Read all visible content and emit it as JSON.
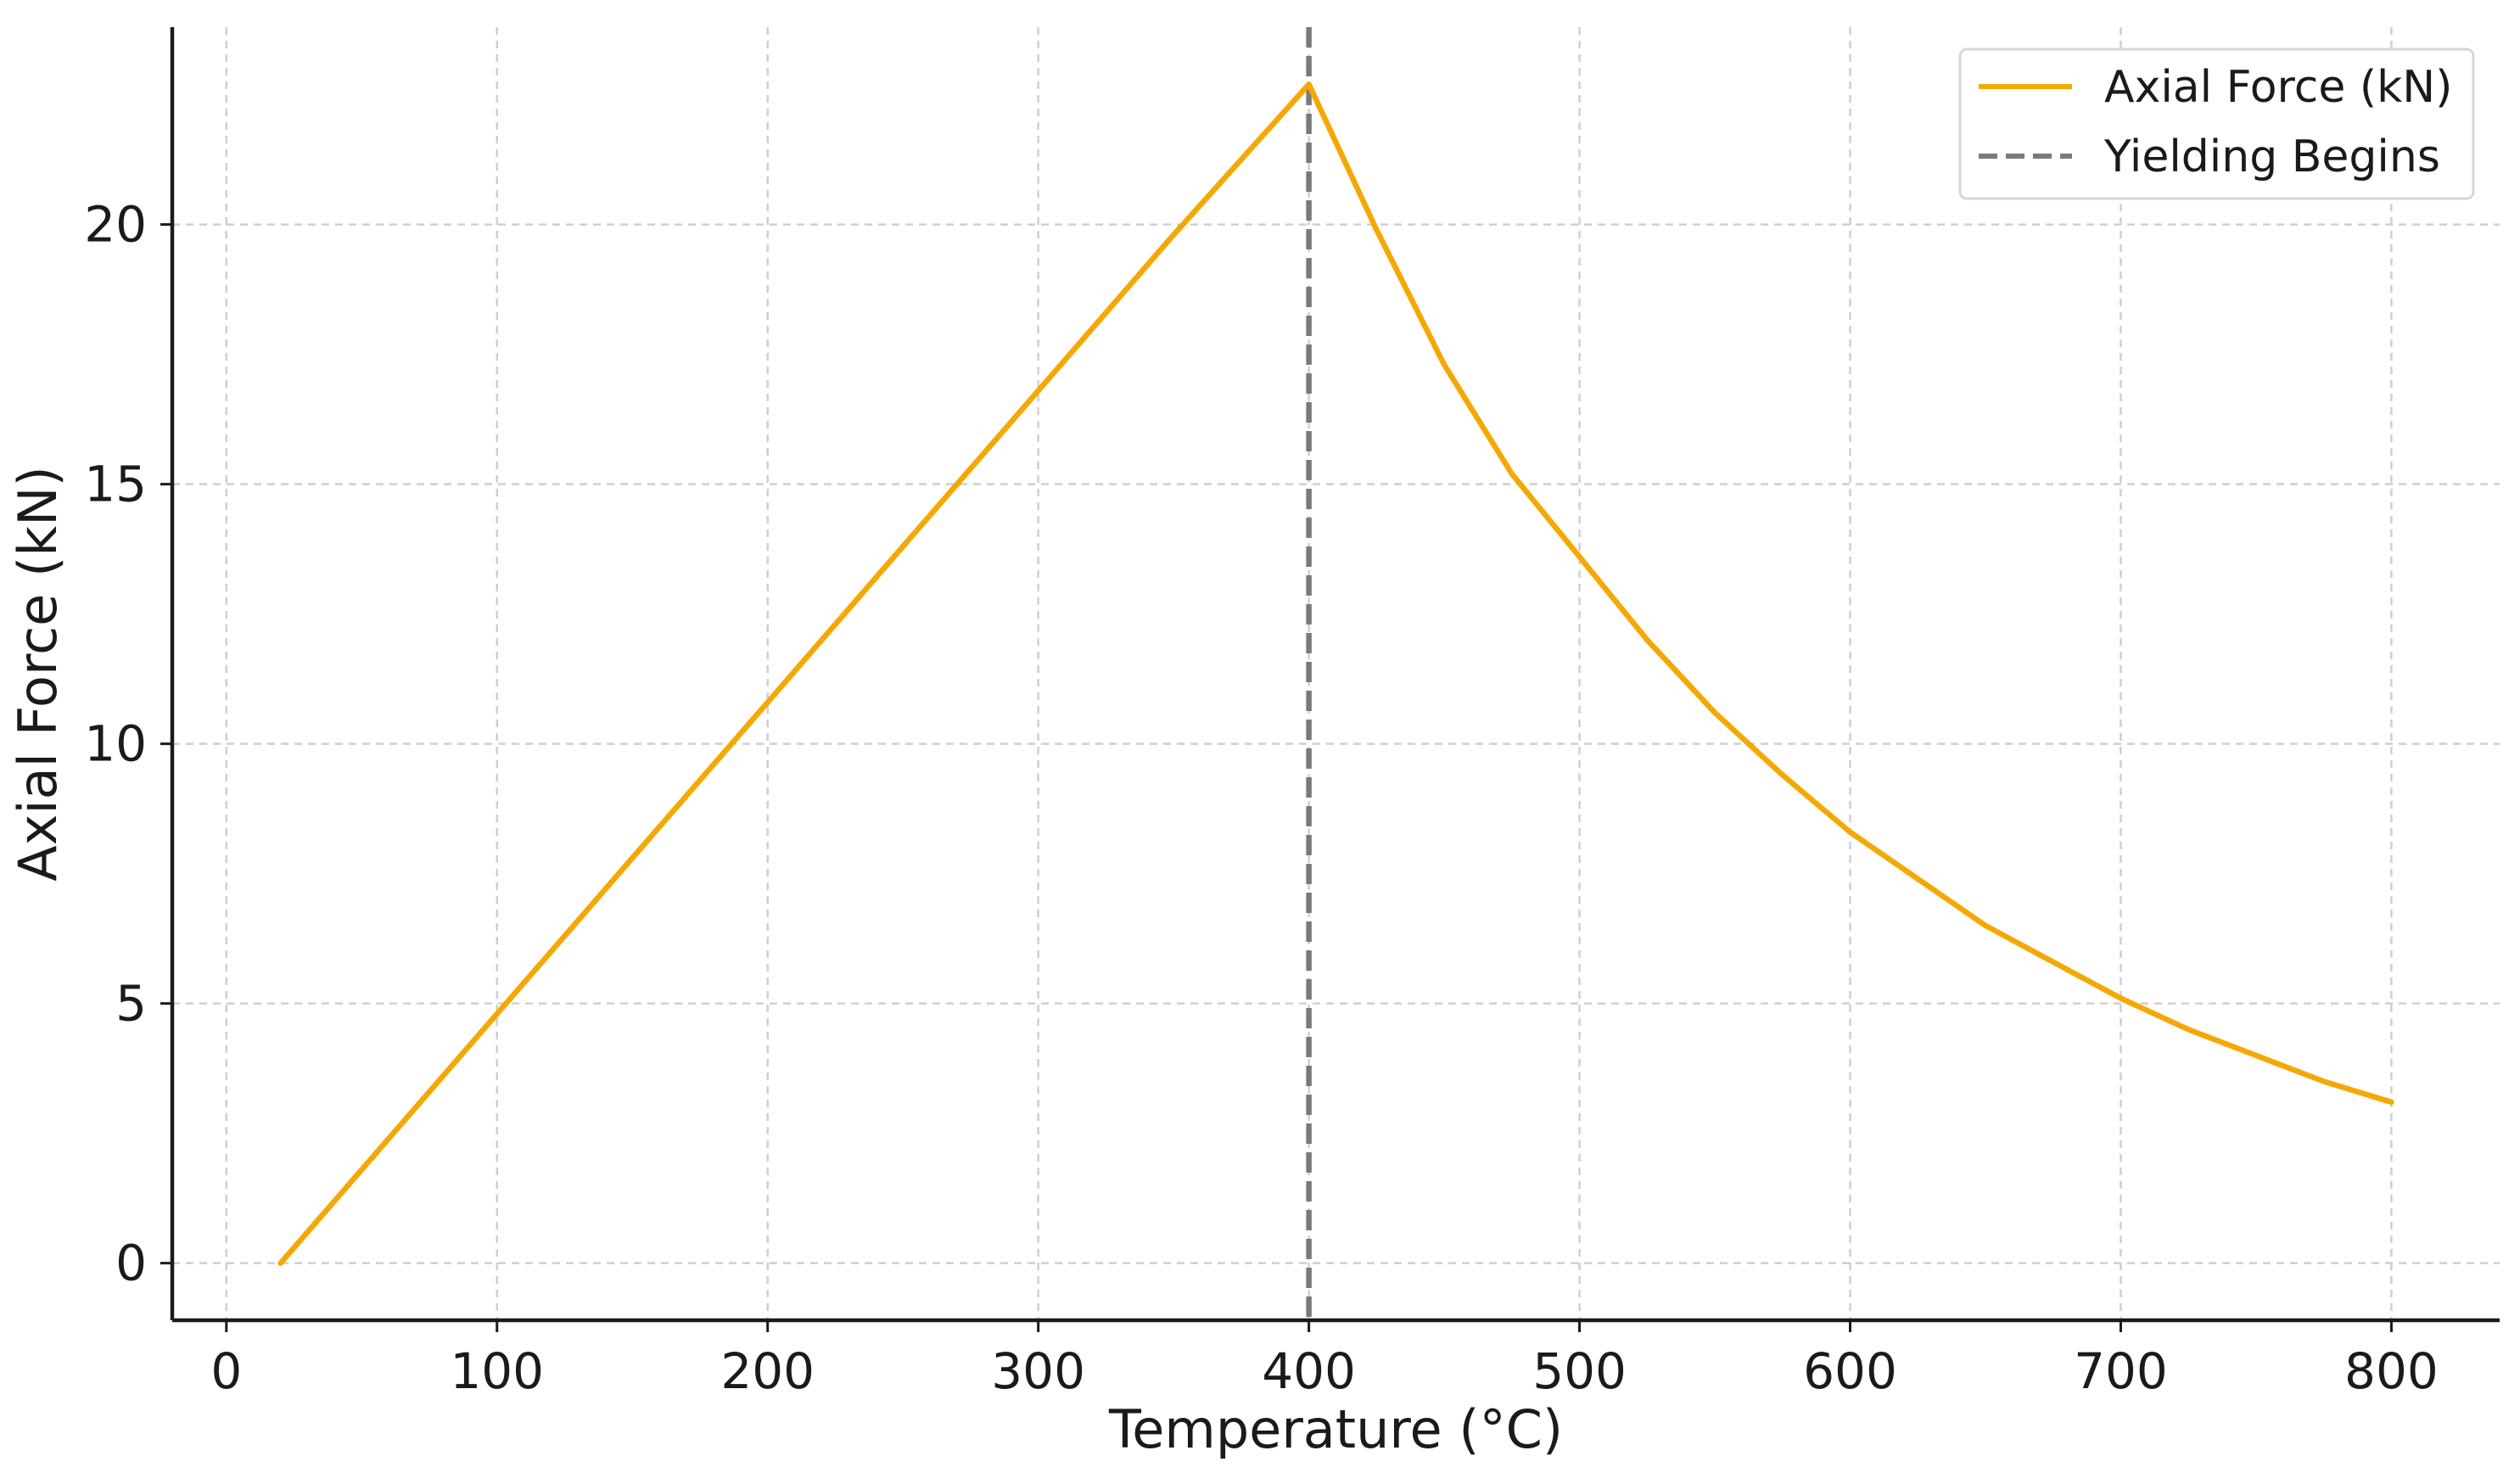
{
  "colors": {
    "series": "#f5a802",
    "marker_line": "#7a7a7a",
    "axis": "#1a1a1a",
    "grid": "#cfcfcf",
    "background": "#ffffff"
  },
  "chart_data": {
    "type": "line",
    "title": "",
    "xlabel": "Temperature (°C)",
    "ylabel": "Axial Force (kN)",
    "xlim": [
      -20,
      840
    ],
    "ylim": [
      -1.1,
      23.8
    ],
    "x_ticks": [
      0,
      100,
      200,
      300,
      400,
      500,
      600,
      700,
      800
    ],
    "y_ticks": [
      0,
      5,
      10,
      15,
      20
    ],
    "grid": true,
    "legend_position": "top-right",
    "series": [
      {
        "name": "Axial Force (kN)",
        "style": "solid",
        "color": "#f5a802",
        "x": [
          20,
          50,
          100,
          150,
          200,
          250,
          300,
          350,
          400,
          425,
          450,
          475,
          500,
          525,
          550,
          575,
          600,
          625,
          650,
          675,
          700,
          725,
          750,
          775,
          800
        ],
        "y": [
          0,
          1.8,
          4.8,
          7.8,
          10.8,
          13.8,
          16.8,
          19.8,
          22.7,
          19.9,
          17.3,
          15.2,
          13.6,
          12.0,
          10.6,
          9.4,
          8.3,
          7.4,
          6.5,
          5.8,
          5.1,
          4.5,
          4.0,
          3.5,
          3.1
        ]
      },
      {
        "name": "Yielding Begins",
        "style": "dashed",
        "color": "#7a7a7a",
        "vertical_x": 400
      }
    ]
  }
}
